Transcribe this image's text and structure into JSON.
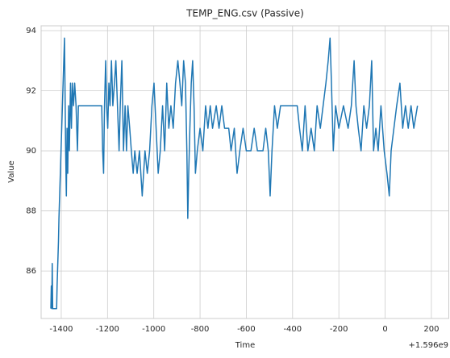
{
  "chart_data": {
    "type": "line",
    "title": "TEMP_ENG.csv (Passive)",
    "x_label": "Time",
    "y_label": "Value",
    "x_offset_label": "+1.596e9",
    "grid": true,
    "xlim": [
      -1487,
      277
    ],
    "xticks": [
      -1400,
      -1200,
      -1000,
      -800,
      -600,
      -400,
      -200,
      0,
      200
    ],
    "ylim": [
      84.42,
      94.16
    ],
    "yticks": [
      86,
      88,
      90,
      92,
      94
    ],
    "x": [
      -1445,
      -1443,
      -1441,
      -1439,
      -1437,
      -1420,
      -1418,
      -1415,
      -1412,
      -1410,
      -1407,
      -1404,
      -1401,
      -1398,
      -1395,
      -1392,
      -1389,
      -1386,
      -1384,
      -1381,
      -1378,
      -1375,
      -1372,
      -1368,
      -1365,
      -1360,
      -1356,
      -1352,
      -1347,
      -1342,
      -1336,
      -1330,
      -1326,
      -1225,
      -1221,
      -1217,
      -1213,
      -1208,
      -1204,
      -1199,
      -1194,
      -1189,
      -1183,
      -1177,
      -1170,
      -1164,
      -1157,
      -1150,
      -1145,
      -1138,
      -1131,
      -1124,
      -1118,
      -1112,
      -1104,
      -1097,
      -1089,
      -1082,
      -1072,
      -1062,
      -1050,
      -1038,
      -1028,
      -1018,
      -1008,
      -999,
      -990,
      -981,
      -972,
      -962,
      -953,
      -944,
      -935,
      -926,
      -916,
      -906,
      -896,
      -887,
      -879,
      -871,
      -863,
      -857,
      -853,
      -849,
      -844,
      -838,
      -832,
      -826,
      -820,
      -812,
      -800,
      -788,
      -776,
      -766,
      -756,
      -746,
      -730,
      -718,
      -706,
      -694,
      -676,
      -666,
      -652,
      -640,
      -628,
      -614,
      -600,
      -580,
      -566,
      -552,
      -528,
      -516,
      -505,
      -497,
      -489,
      -478,
      -466,
      -452,
      -420,
      -380,
      -370,
      -358,
      -346,
      -334,
      -320,
      -306,
      -294,
      -280,
      -268,
      -256,
      -246,
      -238,
      -232,
      -224,
      -214,
      -200,
      -180,
      -160,
      -146,
      -134,
      -126,
      -116,
      -104,
      -92,
      -80,
      -68,
      -58,
      -50,
      -40,
      -30,
      -18,
      -4,
      8,
      18,
      26,
      38,
      50,
      64,
      76,
      88,
      100,
      112,
      124,
      140
    ],
    "series": [
      {
        "name": "TEMP_ENG",
        "color": "#1f77b4",
        "values": [
          84.75,
          85.5,
          84.75,
          86.25,
          84.75,
          84.75,
          85.5,
          86.25,
          87,
          87.75,
          88.5,
          89.25,
          90,
          90.75,
          91.5,
          92.25,
          93,
          93.75,
          92.25,
          90,
          88.5,
          90.75,
          89.25,
          91.5,
          90,
          92.25,
          90.75,
          92.25,
          91.5,
          92.25,
          91.5,
          90,
          91.5,
          91.5,
          90,
          89.25,
          91.5,
          93,
          91.5,
          90.75,
          92.25,
          91.5,
          93,
          91.5,
          92.25,
          93,
          91.5,
          90,
          91.5,
          93,
          90,
          91.5,
          90,
          91.5,
          90.75,
          90,
          89.25,
          90,
          89.25,
          90,
          88.5,
          90,
          89.25,
          90,
          91.5,
          92.25,
          90.75,
          89.25,
          90,
          91.5,
          90,
          92.25,
          90.75,
          91.5,
          90.75,
          92.25,
          93,
          92.25,
          91.5,
          93,
          92.25,
          90,
          87.75,
          89.25,
          90.75,
          92.25,
          93,
          91.5,
          89.25,
          90,
          90.75,
          90,
          91.5,
          90.75,
          91.5,
          90.75,
          91.5,
          90.75,
          91.5,
          90.75,
          90.75,
          90,
          90.75,
          89.25,
          90,
          90.75,
          90,
          90,
          90.75,
          90,
          90,
          90.75,
          90,
          88.5,
          90,
          91.5,
          90.75,
          91.5,
          91.5,
          91.5,
          90.75,
          90,
          91.5,
          90,
          90.75,
          90,
          91.5,
          90.75,
          91.5,
          92.25,
          93,
          93.75,
          92.25,
          90,
          91.5,
          90.75,
          91.5,
          90.75,
          91.5,
          93,
          91.5,
          90.75,
          90,
          91.5,
          90.75,
          91.5,
          93,
          90,
          90.75,
          90,
          91.5,
          90,
          89.25,
          88.5,
          90,
          90.75,
          91.5,
          92.25,
          90.75,
          91.5,
          90.75,
          91.5,
          90.75,
          91.5
        ]
      }
    ]
  }
}
